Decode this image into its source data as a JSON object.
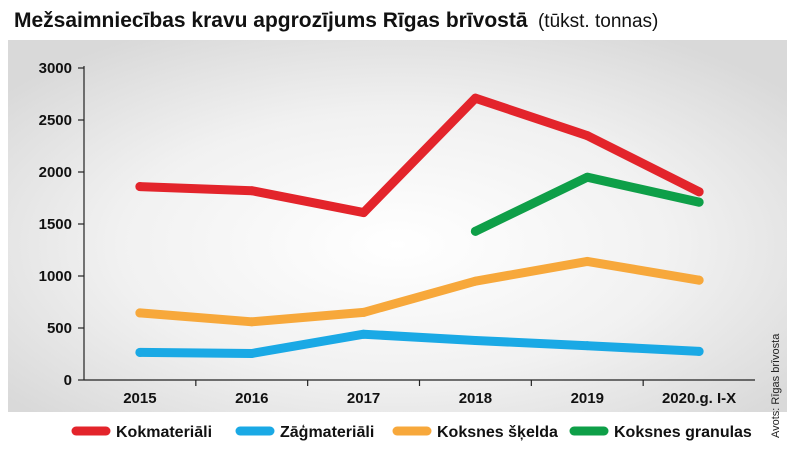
{
  "chart_data": {
    "type": "line",
    "title": "Mežsaimniecības kravu apgrozījums Rīgas brīvostā",
    "unit": "(tūkst. tonnas)",
    "source": "Avots: Rīgas brīvosta",
    "categories": [
      "2015",
      "2016",
      "2017",
      "2018",
      "2019",
      "2020.g. I-X"
    ],
    "ylim": [
      0,
      3000
    ],
    "yticks": [
      0,
      500,
      1000,
      1500,
      2000,
      2500,
      3000
    ],
    "grid": false,
    "legend_position": "bottom",
    "series": [
      {
        "name": "Kokmateriāli",
        "color": "#e3242b",
        "values": [
          1860,
          1820,
          1610,
          2710,
          2350,
          1810
        ]
      },
      {
        "name": "Zāģmateriāli",
        "color": "#1aa9e5",
        "values": [
          265,
          255,
          440,
          380,
          330,
          275
        ]
      },
      {
        "name": "Koksnes šķelda",
        "color": "#f7a83b",
        "values": [
          645,
          560,
          650,
          950,
          1140,
          960
        ]
      },
      {
        "name": "Koksnes granulas",
        "color": "#0e9f48",
        "values": [
          null,
          null,
          null,
          1430,
          1950,
          1710
        ]
      }
    ]
  }
}
